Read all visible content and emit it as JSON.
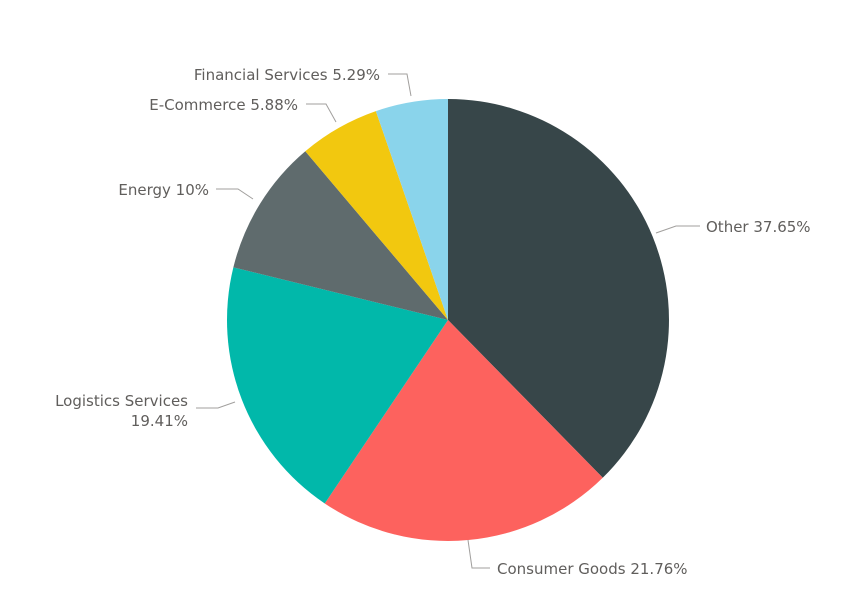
{
  "chart_data": {
    "type": "pie",
    "title": "",
    "slices": [
      {
        "name": "Other",
        "value": 37.65,
        "label": "Other 37.65%",
        "color": "#374649"
      },
      {
        "name": "Consumer Goods",
        "value": 21.76,
        "label": "Consumer Goods 21.76%",
        "color": "#FD625E"
      },
      {
        "name": "Logistics Services",
        "value": 19.41,
        "label_lines": [
          "Logistics Services",
          "19.41%"
        ],
        "color": "#01B8AA"
      },
      {
        "name": "Energy",
        "value": 10,
        "label": "Energy 10%",
        "color": "#5F6B6D"
      },
      {
        "name": "E-Commerce",
        "value": 5.88,
        "label": "E-Commerce 5.88%",
        "color": "#F2C80F"
      },
      {
        "name": "Financial Services",
        "value": 5.29,
        "label": "Financial Services 5.29%",
        "color": "#8AD4EB"
      }
    ]
  }
}
